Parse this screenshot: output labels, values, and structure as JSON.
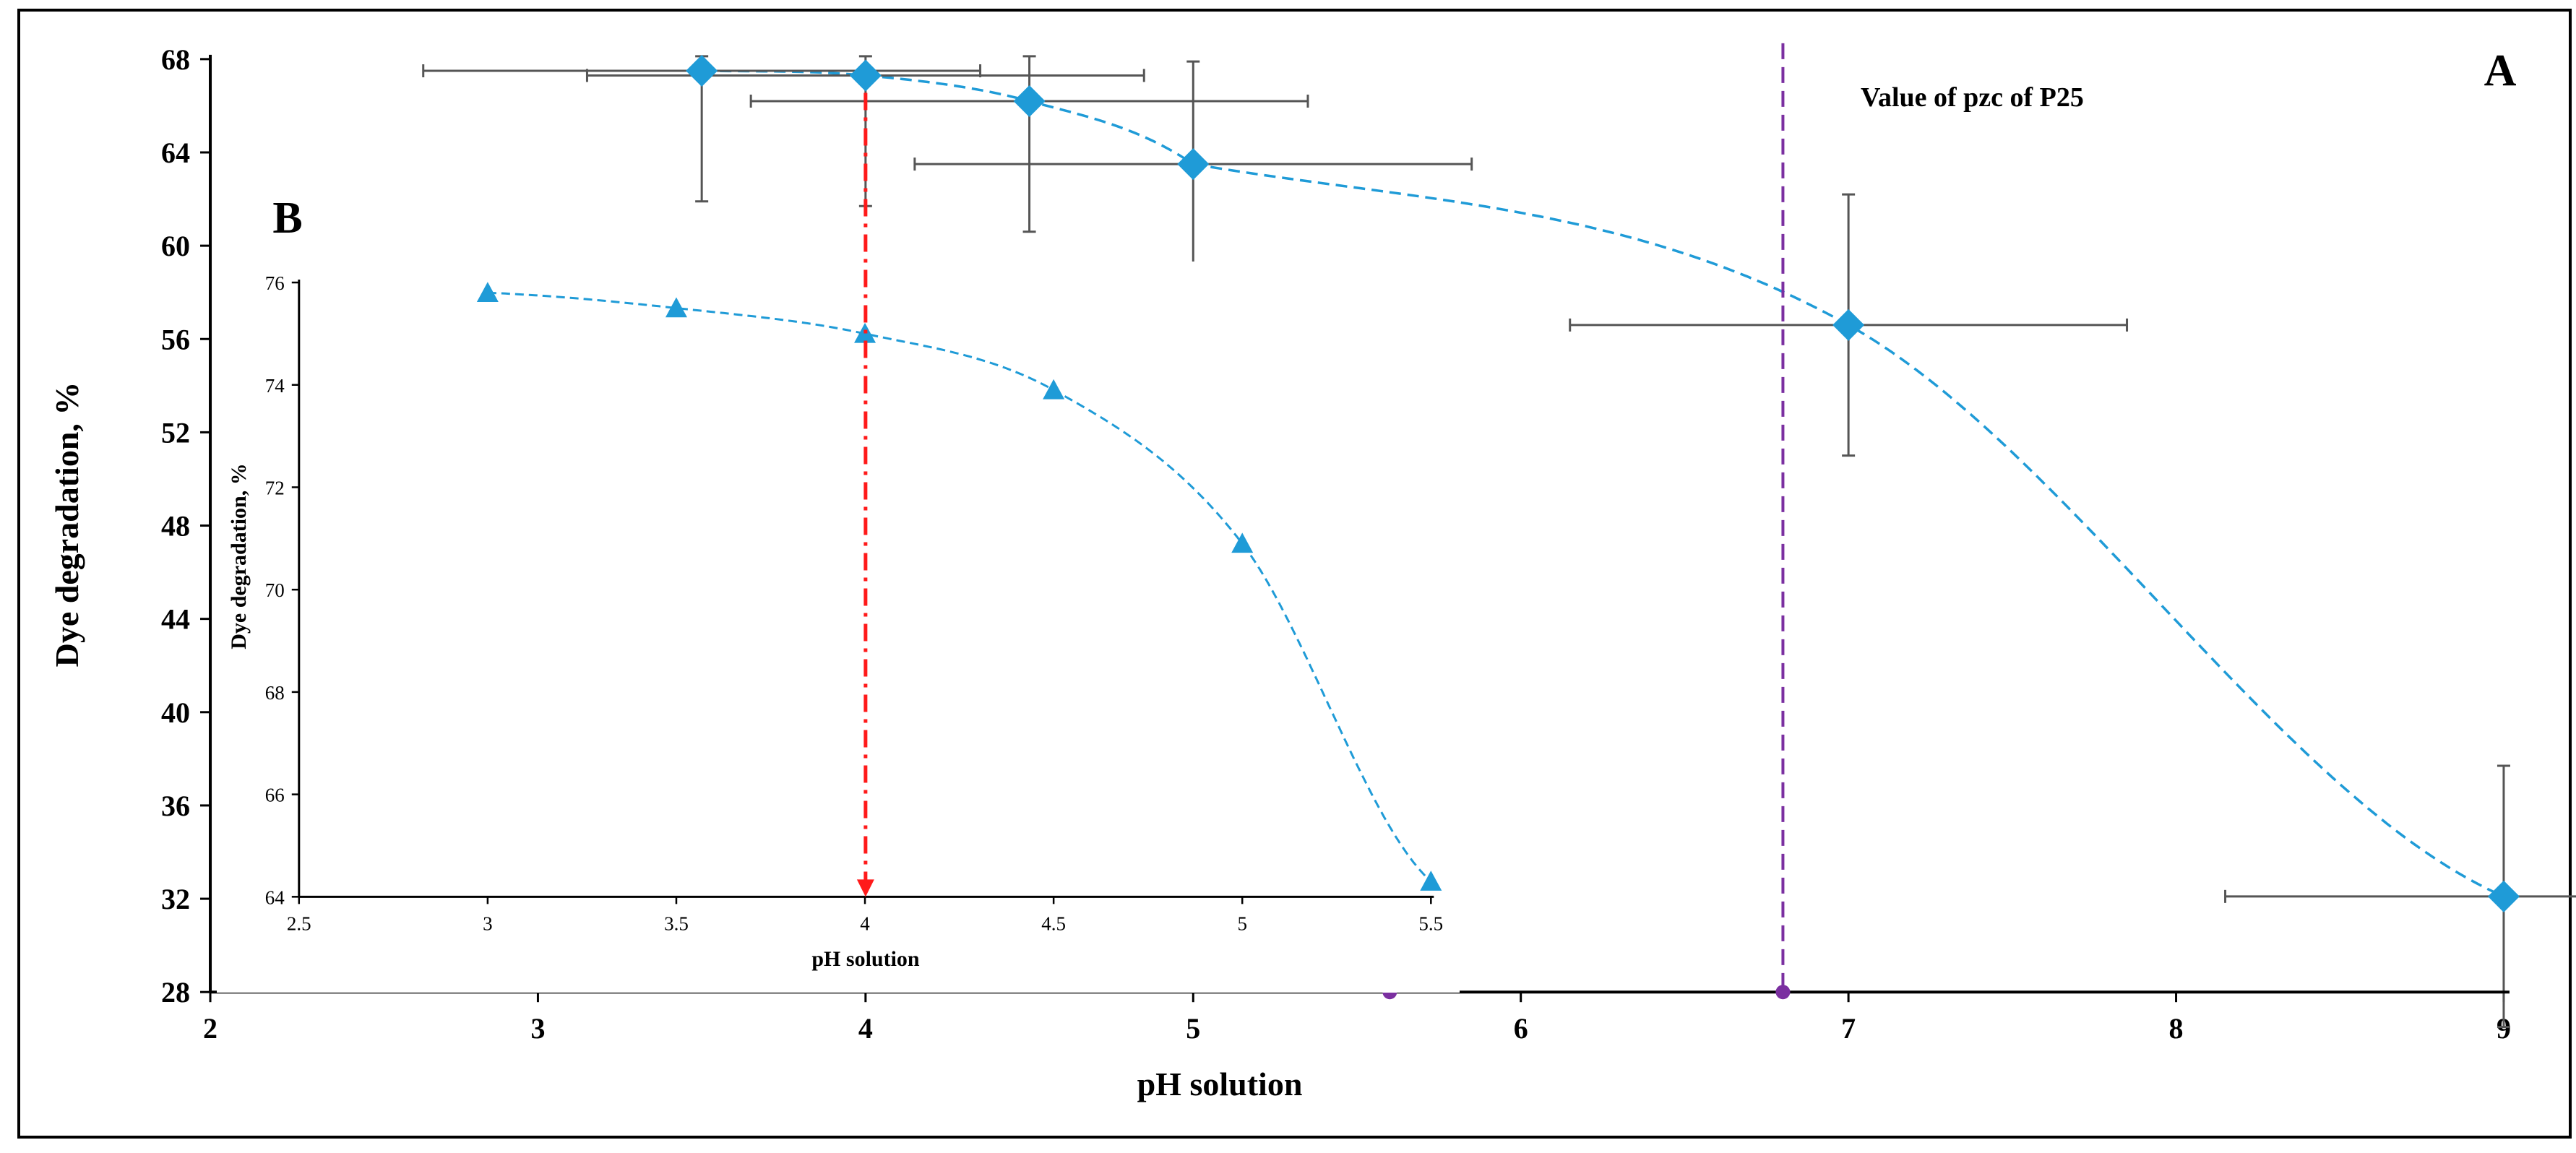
{
  "chart_data": [
    {
      "panel": "A",
      "type": "scatter",
      "panel_label": "A",
      "xlabel": "pH solution",
      "ylabel": "Dye degradation, %",
      "xlim": [
        2,
        9
      ],
      "ylim": [
        28,
        68
      ],
      "x_ticks": [
        "2",
        "3",
        "4",
        "5",
        "6",
        "7",
        "8",
        "9"
      ],
      "y_ticks": [
        "28",
        "32",
        "36",
        "40",
        "44",
        "48",
        "52",
        "56",
        "60",
        "64",
        "68"
      ],
      "series": [
        {
          "name": "Dye degradation",
          "marker": "diamond",
          "color": "#1f9bd7",
          "x": [
            3.5,
            4,
            4.5,
            5,
            7,
            9
          ],
          "y": [
            67.5,
            67.3,
            66.2,
            63.5,
            56.6,
            32.1
          ],
          "x_err": [
            0.85,
            0.85,
            0.85,
            0.85,
            0.85,
            0.85
          ],
          "y_err": [
            5.6,
            5.6,
            5.6,
            4.4,
            5.6,
            5.6
          ]
        }
      ],
      "trendline": {
        "type": "polynomial",
        "style": "dashed",
        "color": "#1f9bd7"
      },
      "pzc_line": {
        "x": 6.8,
        "label": "Value of pzc of P25",
        "color": "#7b2fa0"
      },
      "marker_points_on_axis": [
        5.6,
        6.8
      ],
      "arrow_line": {
        "x": 4,
        "color": "#ff0000",
        "style": "dash-dot"
      }
    },
    {
      "panel": "B",
      "type": "scatter",
      "panel_label": "B",
      "xlabel": "pH solution",
      "ylabel": "Dye degradation, %",
      "xlim": [
        2.5,
        5.5
      ],
      "ylim": [
        64,
        76
      ],
      "x_ticks": [
        "2.5",
        "3",
        "3.5",
        "4",
        "4.5",
        "5",
        "5.5"
      ],
      "y_ticks": [
        "64",
        "66",
        "68",
        "70",
        "72",
        "74",
        "76"
      ],
      "series": [
        {
          "name": "Dye degradation",
          "marker": "triangle",
          "color": "#1f9bd7",
          "x": [
            3,
            3.5,
            4,
            4.5,
            5,
            5.5
          ],
          "y": [
            75.8,
            75.5,
            75.0,
            73.9,
            70.9,
            64.3
          ]
        }
      ],
      "trendline": {
        "type": "polynomial",
        "style": "dashed",
        "color": "#1f9bd7"
      }
    }
  ]
}
